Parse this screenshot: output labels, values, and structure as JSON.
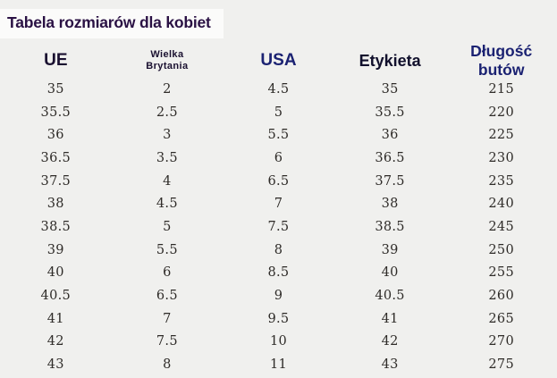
{
  "page": {
    "title": "Tabela rozmiarów dla kobiet"
  },
  "colors": {
    "background": "#f0f0ee",
    "title_strip": "#fbfbfa",
    "title_text": "#2a1144",
    "header_dark": "#1a1030",
    "header_navy": "#1b2272",
    "body_text": "#2e2b28"
  },
  "chart_data": {
    "type": "table",
    "title": "Tabela rozmiarów dla kobiet",
    "columns": [
      "UE",
      "Wielka Brytania",
      "USA",
      "Etykieta",
      "Długość butów"
    ],
    "rows": [
      [
        "35",
        "2",
        "4.5",
        "35",
        "215"
      ],
      [
        "35.5",
        "2.5",
        "5",
        "35.5",
        "220"
      ],
      [
        "36",
        "3",
        "5.5",
        "36",
        "225"
      ],
      [
        "36.5",
        "3.5",
        "6",
        "36.5",
        "230"
      ],
      [
        "37.5",
        "4",
        "6.5",
        "37.5",
        "235"
      ],
      [
        "38",
        "4.5",
        "7",
        "38",
        "240"
      ],
      [
        "38.5",
        "5",
        "7.5",
        "38.5",
        "245"
      ],
      [
        "39",
        "5.5",
        "8",
        "39",
        "250"
      ],
      [
        "40",
        "6",
        "8.5",
        "40",
        "255"
      ],
      [
        "40.5",
        "6.5",
        "9",
        "40.5",
        "260"
      ],
      [
        "41",
        "7",
        "9.5",
        "41",
        "265"
      ],
      [
        "42",
        "7.5",
        "10",
        "42",
        "270"
      ],
      [
        "43",
        "8",
        "11",
        "43",
        "275"
      ]
    ],
    "legend": null,
    "grid": false
  }
}
